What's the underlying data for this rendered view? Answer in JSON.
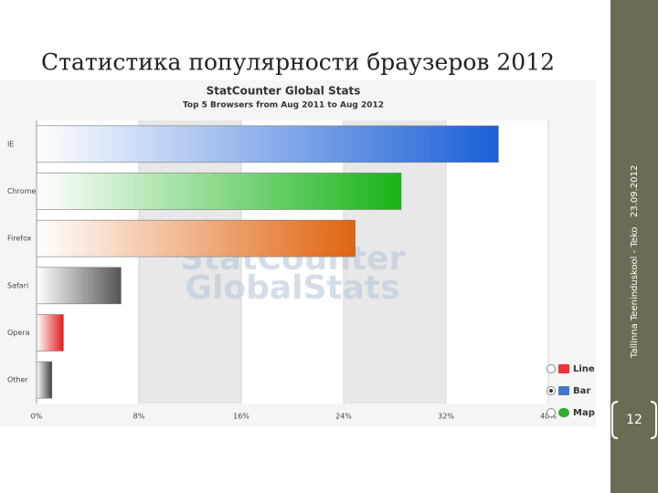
{
  "slide": {
    "title": "Статистика популярности браузеров 2012",
    "footer_org": "Tallinna Teeninduskool - Teko",
    "footer_date": "23.09.2012",
    "page_number": "12"
  },
  "chart_data": {
    "type": "bar",
    "orientation": "horizontal",
    "title": "StatCounter Global Stats",
    "subtitle": "Top 5 Browsers from Aug 2011 to Aug 2012",
    "watermark": [
      "StatCounter",
      "GlobalStats"
    ],
    "categories": [
      "IE",
      "Chrome",
      "Firefox",
      "Safari",
      "Opera",
      "Other"
    ],
    "values": [
      36.1,
      28.5,
      24.9,
      6.6,
      2.1,
      1.2
    ],
    "colors": [
      "#1a5fd6",
      "#17b417",
      "#e0640f",
      "#555555",
      "#e31b1b",
      "#3f3f3f"
    ],
    "xlim": [
      0,
      40
    ],
    "xticks": [
      {
        "value": 0,
        "label": "0%"
      },
      {
        "value": 8,
        "label": "8%"
      },
      {
        "value": 16,
        "label": "16%"
      },
      {
        "value": 24,
        "label": "24%"
      },
      {
        "value": 32,
        "label": "32%"
      },
      {
        "value": 40,
        "label": "40%"
      }
    ],
    "view_options": [
      "Line",
      "Bar",
      "Map"
    ],
    "selected_option": 1
  }
}
